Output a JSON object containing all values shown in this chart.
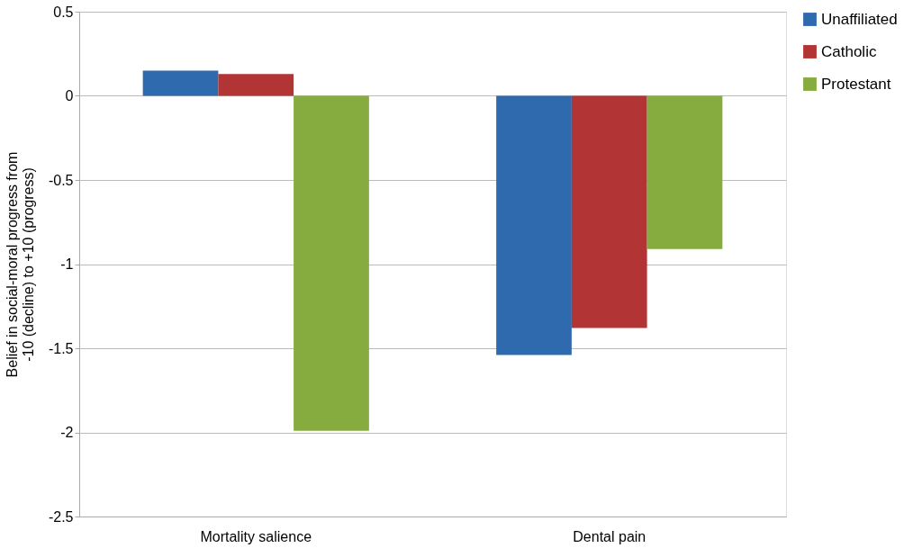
{
  "chart_data": {
    "type": "bar",
    "ylabel": "Belief in social-moral progress from -10 (decline) to +10 (progress)",
    "categories": [
      "Mortality salience",
      "Dental pain"
    ],
    "series": [
      {
        "name": "Unaffiliated",
        "color": "#2e6aad",
        "values": [
          0.15,
          -1.54
        ]
      },
      {
        "name": "Catholic",
        "color": "#b33434",
        "values": [
          0.13,
          -1.38
        ]
      },
      {
        "name": "Protestant",
        "color": "#86ab3e",
        "values": [
          -1.99,
          -0.91
        ]
      }
    ],
    "ylim": [
      -2.5,
      0.5
    ],
    "yticks": [
      -2.5,
      -2,
      -1.5,
      -1,
      -0.5,
      0,
      0.5
    ],
    "grid": "y",
    "legend": "right"
  }
}
